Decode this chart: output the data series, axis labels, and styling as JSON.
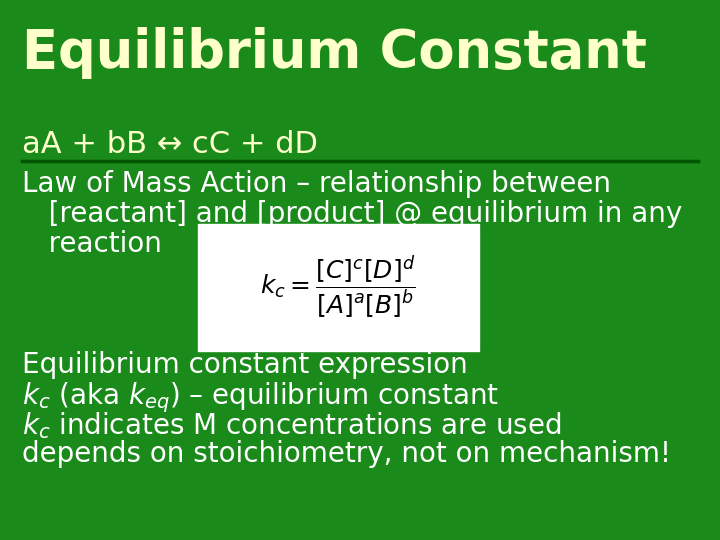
{
  "bg_color": "#1a8a1a",
  "title": "Equilibrium Constant",
  "title_color": "#ffffcc",
  "title_fontsize": 38,
  "reaction_line": "aA + bB ↔ cC + dD",
  "reaction_color": "#ffffcc",
  "reaction_fontsize": 22,
  "underline_color": "#005500",
  "body_color": "#ffffff",
  "body_fontsize": 20,
  "line1": "Law of Mass Action – relationship between",
  "line2": "   [reactant] and [product] @ equilibrium in any",
  "line3": "   reaction",
  "line4": "Equilibrium constant expression",
  "line5": "$k_c$ (aka $k_{eq}$) – equilibrium constant",
  "line6": "$k_c$ indicates M concentrations are used",
  "line7": "depends on stoichiometry, not on mechanism!",
  "formula_text": "$k_c = \\dfrac{[C]^c[D]^d}{[A]^a[B]^b}$",
  "formula_fontsize": 18
}
